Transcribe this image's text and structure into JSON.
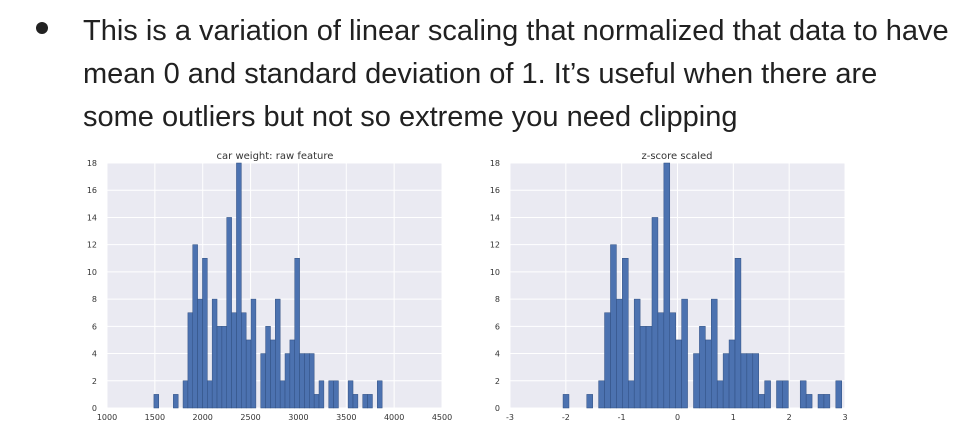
{
  "bullet": {
    "text": "This is a variation of linear scaling that normalized that data to have mean 0 and standard deviation of 1.  It’s useful when there are some outliers but not so extreme you need clipping"
  },
  "chart_data": [
    {
      "type": "bar",
      "title": "car weight: raw feature",
      "xlabel": "",
      "ylabel": "",
      "xlim": [
        1000,
        4500
      ],
      "ylim": [
        0,
        18
      ],
      "x_ticks": [
        1000,
        1500,
        2000,
        2500,
        3000,
        3500,
        4000,
        4500
      ],
      "y_ticks": [
        0,
        2,
        4,
        6,
        8,
        10,
        12,
        14,
        16,
        18
      ],
      "grid": true,
      "bar_color": "#4C72B0",
      "bins_start": 1490,
      "bin_width": 50.74,
      "values": [
        1,
        0,
        0,
        0,
        1,
        0,
        2,
        7,
        12,
        8,
        11,
        2,
        8,
        6,
        6,
        14,
        7,
        18,
        7,
        5,
        8,
        0,
        4,
        6,
        5,
        8,
        2,
        4,
        5,
        11,
        4,
        4,
        4,
        1,
        2,
        0,
        2,
        2,
        0,
        0,
        2,
        1,
        0,
        1,
        1,
        0,
        2
      ]
    },
    {
      "type": "bar",
      "title": "z-score scaled",
      "xlabel": "",
      "ylabel": "",
      "xlim": [
        -3,
        3
      ],
      "ylim": [
        0,
        18
      ],
      "x_ticks": [
        -3,
        -2,
        -1,
        0,
        1,
        2,
        3
      ],
      "y_ticks": [
        0,
        2,
        4,
        6,
        8,
        10,
        12,
        14,
        16,
        18
      ],
      "grid": true,
      "bar_color": "#4C72B0",
      "bins_start": -2.05,
      "bin_width": 0.1062,
      "values": [
        1,
        0,
        0,
        0,
        1,
        0,
        2,
        7,
        12,
        8,
        11,
        2,
        8,
        6,
        6,
        14,
        7,
        18,
        7,
        5,
        8,
        0,
        4,
        6,
        5,
        8,
        2,
        4,
        5,
        11,
        4,
        4,
        4,
        1,
        2,
        0,
        2,
        2,
        0,
        0,
        2,
        1,
        0,
        1,
        1,
        0,
        2
      ]
    }
  ]
}
